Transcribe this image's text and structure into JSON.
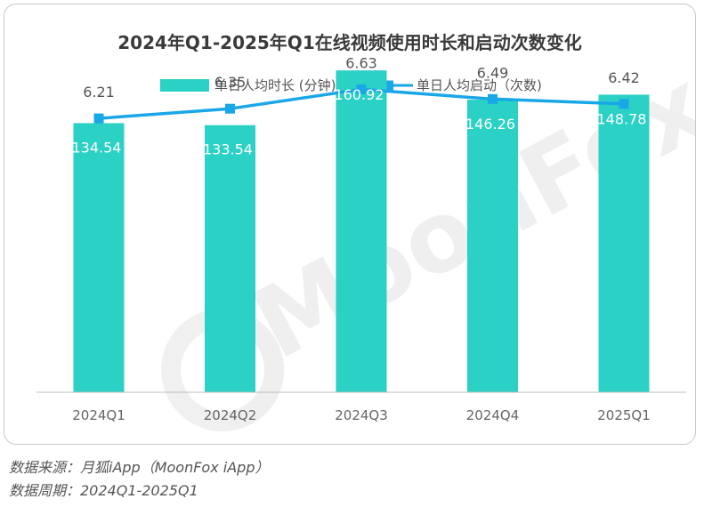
{
  "chart_data": {
    "type": "bar",
    "title": "2024年Q1-2025年Q1在线视频使用时长和启动次数变化",
    "categories": [
      "2024Q1",
      "2024Q2",
      "2024Q3",
      "2024Q4",
      "2025Q1"
    ],
    "series": [
      {
        "name": "单日人均时长 (分钟)",
        "type": "bar",
        "values": [
          134.54,
          133.54,
          160.92,
          146.26,
          148.78
        ],
        "color": "#2ad1c4"
      },
      {
        "name": "单日人均启动（次数)",
        "type": "line",
        "values": [
          6.21,
          6.35,
          6.63,
          6.49,
          6.42
        ],
        "color": "#1aa7e8"
      }
    ],
    "bar_ylim": [
      0,
      185
    ],
    "line_ylim": [
      2.25,
      7.6
    ],
    "gridlines": false,
    "legend_position": "top-center"
  },
  "watermark": "MoonFox",
  "footer": {
    "source": "数据来源：月狐iApp（MoonFox iApp）",
    "period": "数据周期：2024Q1-2025Q1"
  }
}
